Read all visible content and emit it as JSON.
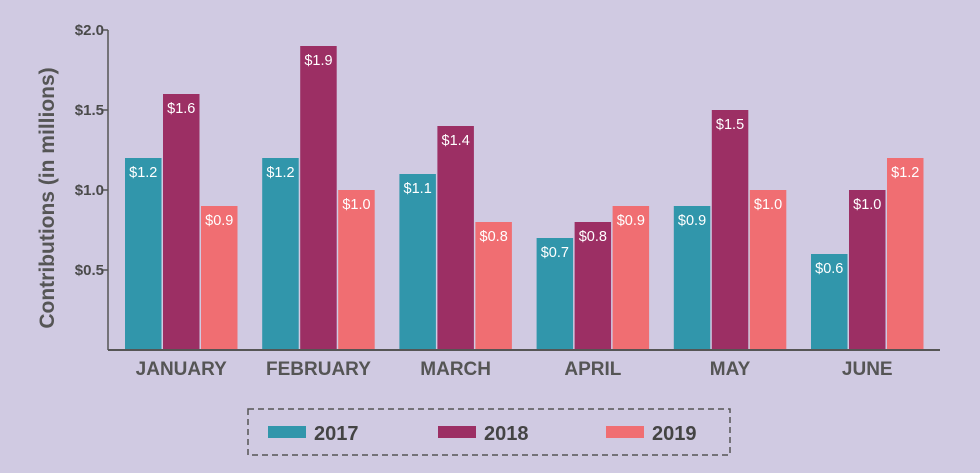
{
  "chart_data": {
    "type": "bar",
    "ylabel": "Contributions (in millions)",
    "xlabel": "",
    "title": "",
    "ylim": [
      0,
      2.0
    ],
    "yticks": [
      {
        "value": 0.5,
        "label": "$0.5"
      },
      {
        "value": 1.0,
        "label": "$1.0"
      },
      {
        "value": 1.5,
        "label": "$1.5"
      },
      {
        "value": 2.0,
        "label": "$2.0"
      }
    ],
    "categories": [
      "JANUARY",
      "FEBRUARY",
      "MARCH",
      "APRIL",
      "MAY",
      "JUNE"
    ],
    "series": [
      {
        "name": "2017",
        "color": "#3196ab",
        "values": [
          1.2,
          1.2,
          1.1,
          0.7,
          0.9,
          0.6
        ],
        "labels": [
          "$1.2",
          "$1.2",
          "$1.1",
          "$0.7",
          "$0.9",
          "$0.6"
        ]
      },
      {
        "name": "2018",
        "color": "#9c2f64",
        "values": [
          1.6,
          1.9,
          1.4,
          0.8,
          1.5,
          1.0
        ],
        "labels": [
          "$1.6",
          "$1.9",
          "$1.4",
          "$0.8",
          "$1.5",
          "$1.0"
        ]
      },
      {
        "name": "2019",
        "color": "#f06e72",
        "values": [
          0.9,
          1.0,
          0.8,
          0.9,
          1.0,
          1.2
        ],
        "labels": [
          "$0.9",
          "$1.0",
          "$0.8",
          "$0.9",
          "$1.0",
          "$1.2"
        ]
      }
    ],
    "legend_position": "bottom-center"
  }
}
